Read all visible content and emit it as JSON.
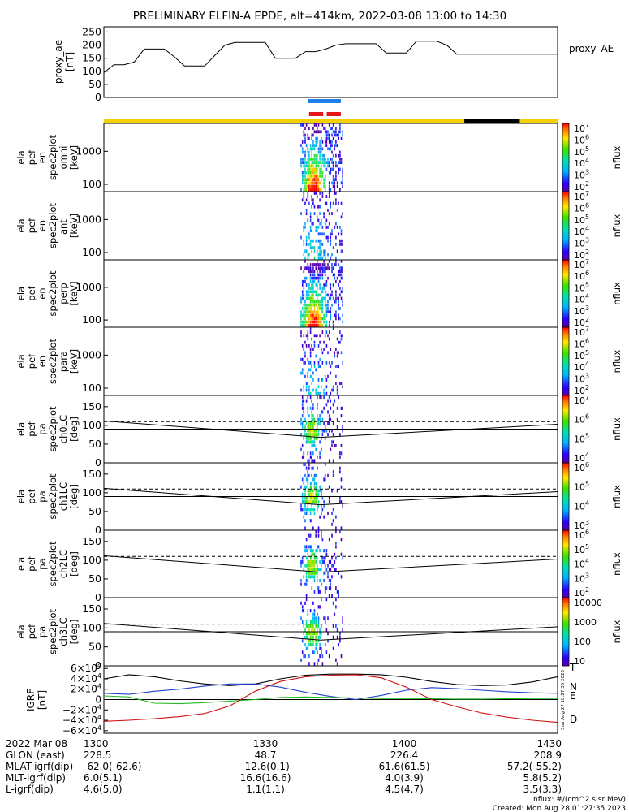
{
  "title": "PRELIMINARY ELFIN-A EPDE, alt=414km, 2022-03-08 13:00 to 14:30",
  "colors": {
    "ae_line": "#000000",
    "blue_bar": "#1e7fe6",
    "red_bar": "#e8161b",
    "yellow_bar": "#f5d000",
    "black_bar": "#000000",
    "igrf_T": "#000000",
    "igrf_N": "#1f3fd0",
    "igrf_E": "#22bb22",
    "igrf_D": "#d01515"
  },
  "chart_data": [
    {
      "id": "proxy_ae",
      "type": "line",
      "ylabel_lines": [
        "proxy_ae",
        "[nT]"
      ],
      "legend": "proxy_AE",
      "yticks": [
        "250",
        "200",
        "150",
        "100",
        "50",
        "0"
      ],
      "ylim": [
        0,
        270
      ],
      "x_minutes": [
        0,
        2,
        4,
        6,
        8,
        10,
        12,
        14,
        16,
        18,
        20,
        22,
        24,
        26,
        28,
        30,
        32,
        34,
        36,
        38,
        40,
        42,
        44,
        46,
        48,
        50,
        52,
        54,
        56,
        58,
        60,
        62,
        64,
        66,
        68,
        70,
        72,
        74,
        76,
        78,
        80,
        82,
        84,
        86,
        88,
        90
      ],
      "values": [
        95,
        125,
        125,
        135,
        185,
        185,
        185,
        155,
        120,
        120,
        120,
        160,
        200,
        210,
        210,
        210,
        210,
        150,
        150,
        150,
        175,
        175,
        185,
        200,
        205,
        205,
        205,
        205,
        170,
        170,
        170,
        215,
        215,
        215,
        200,
        165,
        165,
        165,
        165,
        165,
        165,
        165,
        165,
        165,
        165,
        165
      ]
    },
    {
      "id": "ela_pef_en_spec2plot_omni",
      "type": "heatmap",
      "ylabel_lines": [
        "ela",
        "pef",
        "en",
        "spec2plot",
        "omni",
        "[keV]"
      ],
      "yscale": "log",
      "yticks": [
        "1000",
        "100"
      ],
      "ylim_keV": [
        60,
        7000
      ],
      "zlabel": "nflux",
      "ztick_exponents": [
        "2",
        "3",
        "4",
        "5",
        "6",
        "7"
      ],
      "zscale": "log",
      "zlim": [
        100,
        10000000
      ]
    },
    {
      "id": "ela_pef_en_spec2plot_anti",
      "type": "heatmap",
      "ylabel_lines": [
        "ela",
        "pef",
        "en",
        "spec2plot",
        "anti",
        "[keV]"
      ],
      "yscale": "log",
      "yticks": [
        "1000",
        "100"
      ],
      "ylim_keV": [
        60,
        7000
      ],
      "zlabel": "nflux",
      "ztick_exponents": [
        "2",
        "3",
        "4",
        "5",
        "6",
        "7"
      ],
      "zscale": "log",
      "zlim": [
        100,
        10000000
      ]
    },
    {
      "id": "ela_pef_en_spec2plot_perp",
      "type": "heatmap",
      "ylabel_lines": [
        "ela",
        "pef",
        "en",
        "spec2plot",
        "perp",
        "[keV]"
      ],
      "yscale": "log",
      "yticks": [
        "1000",
        "100"
      ],
      "ylim_keV": [
        60,
        7000
      ],
      "zlabel": "nflux",
      "ztick_exponents": [
        "2",
        "3",
        "4",
        "5",
        "6",
        "7"
      ],
      "zscale": "log",
      "zlim": [
        100,
        10000000
      ]
    },
    {
      "id": "ela_pef_en_spec2plot_para",
      "type": "heatmap",
      "ylabel_lines": [
        "ela",
        "pef",
        "en",
        "spec2plot",
        "para",
        "[keV]"
      ],
      "yscale": "log",
      "yticks": [
        "1000",
        "100"
      ],
      "ylim_keV": [
        60,
        7000
      ],
      "zlabel": "nflux",
      "ztick_exponents": [
        "2",
        "3",
        "4",
        "5",
        "6",
        "7"
      ],
      "zscale": "log",
      "zlim": [
        100,
        10000000
      ]
    },
    {
      "id": "ela_pef_pa_spec2plot_ch0LC",
      "type": "heatmap",
      "ylabel_lines": [
        "ela",
        "pef",
        "pa",
        "spec2plot",
        "ch0LC",
        "[deg]"
      ],
      "yticks": [
        "150",
        "100",
        "50",
        "0"
      ],
      "ylim_deg": [
        0,
        180
      ],
      "zlabel": "nflux",
      "ztick_exponents": [
        "4",
        "5",
        "6",
        "7"
      ],
      "zscale": "log",
      "zlim": [
        1000,
        10000000
      ]
    },
    {
      "id": "ela_pef_pa_spec2plot_ch1LC",
      "type": "heatmap",
      "ylabel_lines": [
        "ela",
        "pef",
        "pa",
        "spec2plot",
        "ch1LC",
        "[deg]"
      ],
      "yticks": [
        "150",
        "100",
        "50",
        "0"
      ],
      "ylim_deg": [
        0,
        180
      ],
      "zlabel": "nflux",
      "ztick_exponents": [
        "3",
        "4",
        "5",
        "6"
      ],
      "zscale": "log",
      "zlim": [
        100,
        1000000
      ]
    },
    {
      "id": "ela_pef_pa_spec2plot_ch2LC",
      "type": "heatmap",
      "ylabel_lines": [
        "ela",
        "pef",
        "pa",
        "spec2plot",
        "ch2LC",
        "[deg]"
      ],
      "yticks": [
        "150",
        "100",
        "50",
        "0"
      ],
      "ylim_deg": [
        0,
        180
      ],
      "zlabel": "nflux",
      "ztick_exponents": [
        "2",
        "3",
        "4",
        "5",
        "6"
      ],
      "zscale": "log",
      "zlim": [
        100,
        1000000
      ]
    },
    {
      "id": "ela_pef_pa_spec2plot_ch3LC",
      "type": "heatmap",
      "ylabel_lines": [
        "ela",
        "pef",
        "pa",
        "spec2plot",
        "ch3LC",
        "[deg]"
      ],
      "yticks": [
        "150",
        "100",
        "50",
        "0"
      ],
      "ylim_deg": [
        0,
        180
      ],
      "zlabel": "nflux",
      "zticks_plain": [
        "10000",
        "1000",
        "100",
        "10"
      ],
      "zscale": "log",
      "zlim": [
        10,
        10000
      ]
    },
    {
      "id": "igrf",
      "type": "line",
      "ylabel_lines": [
        "IGRF",
        "[nT]"
      ],
      "ytick_labels": [
        {
          "pre": "6×10",
          "exp": "4"
        },
        {
          "pre": "4×10",
          "exp": "4"
        },
        {
          "pre": "2×10",
          "exp": "4"
        },
        {
          "pre": "0",
          "exp": ""
        },
        {
          "pre": "−2×10",
          "exp": "4"
        },
        {
          "pre": "−4×10",
          "exp": "4"
        },
        {
          "pre": "−6×10",
          "exp": "4"
        }
      ],
      "ylim": [
        -65000,
        65000
      ],
      "legend": [
        "T",
        "N",
        "E",
        "D"
      ],
      "side_stamp": "Sun Aug 27 18:27:35 2023",
      "x_minutes": [
        0,
        5,
        10,
        15,
        20,
        25,
        30,
        35,
        40,
        45,
        50,
        55,
        60,
        65,
        70,
        75,
        80,
        85,
        90
      ],
      "series": [
        {
          "name": "T",
          "values": [
            40000,
            48000,
            44000,
            36000,
            30000,
            27000,
            30000,
            40000,
            47000,
            49000,
            49000,
            48000,
            43000,
            35000,
            29000,
            27000,
            28000,
            34000,
            44000
          ]
        },
        {
          "name": "N",
          "values": [
            12000,
            10000,
            16000,
            20000,
            26000,
            30000,
            30000,
            24000,
            14000,
            6000,
            0,
            8000,
            18000,
            23000,
            21000,
            18000,
            15000,
            13000,
            12000
          ]
        },
        {
          "name": "E",
          "values": [
            7000,
            5000,
            -7000,
            -8000,
            -6000,
            -3000,
            0,
            4000,
            5000,
            4000,
            3000,
            2000,
            2000,
            1500,
            1000,
            1000,
            1500,
            2000,
            2000
          ]
        },
        {
          "name": "D",
          "values": [
            -42000,
            -40000,
            -37000,
            -33000,
            -27000,
            -12000,
            16000,
            35000,
            44000,
            47000,
            48000,
            42000,
            24000,
            0,
            -14000,
            -26000,
            -34000,
            -40000,
            -44000
          ]
        }
      ]
    }
  ],
  "sectors": {
    "x_minutes": [
      0,
      30,
      60,
      90
    ],
    "blue_bar_minutes": [
      40.5,
      47.0
    ],
    "red_bars_minutes": [
      [
        40.7,
        43.5
      ],
      [
        44.2,
        47.0
      ]
    ],
    "black_segment_minutes": [
      71.5,
      82.5
    ],
    "spectra_burst_minutes": [
      39.0,
      47.5
    ],
    "loss_cone_dip_minute": 43.0
  },
  "footer": {
    "rows": [
      {
        "label": "2022 Mar 08",
        "values": [
          "1300",
          "1330",
          "1400",
          "1430"
        ]
      },
      {
        "label": "GLON (east)",
        "values": [
          "228.5",
          "48.7",
          "226.4",
          "208.9"
        ]
      },
      {
        "label": "MLAT-igrf(dip)",
        "values": [
          "-62.0(-62.6)",
          "-12.6(0.1)",
          "61.6(61.5)",
          "-57.2(-55.2)"
        ]
      },
      {
        "label": "MLT-igrf(dip)",
        "values": [
          "6.0(5.1)",
          "16.6(16.6)",
          "4.0(3.9)",
          "5.8(5.2)"
        ]
      },
      {
        "label": "L-igrf(dip)",
        "values": [
          "4.6(5.0)",
          "1.1(1.1)",
          "4.5(4.7)",
          "3.5(3.3)"
        ]
      }
    ],
    "nflux_note": "nflux: #/(cm^2 s sr MeV)",
    "created": "Created: Mon Aug 28 01:27:35 2023"
  }
}
